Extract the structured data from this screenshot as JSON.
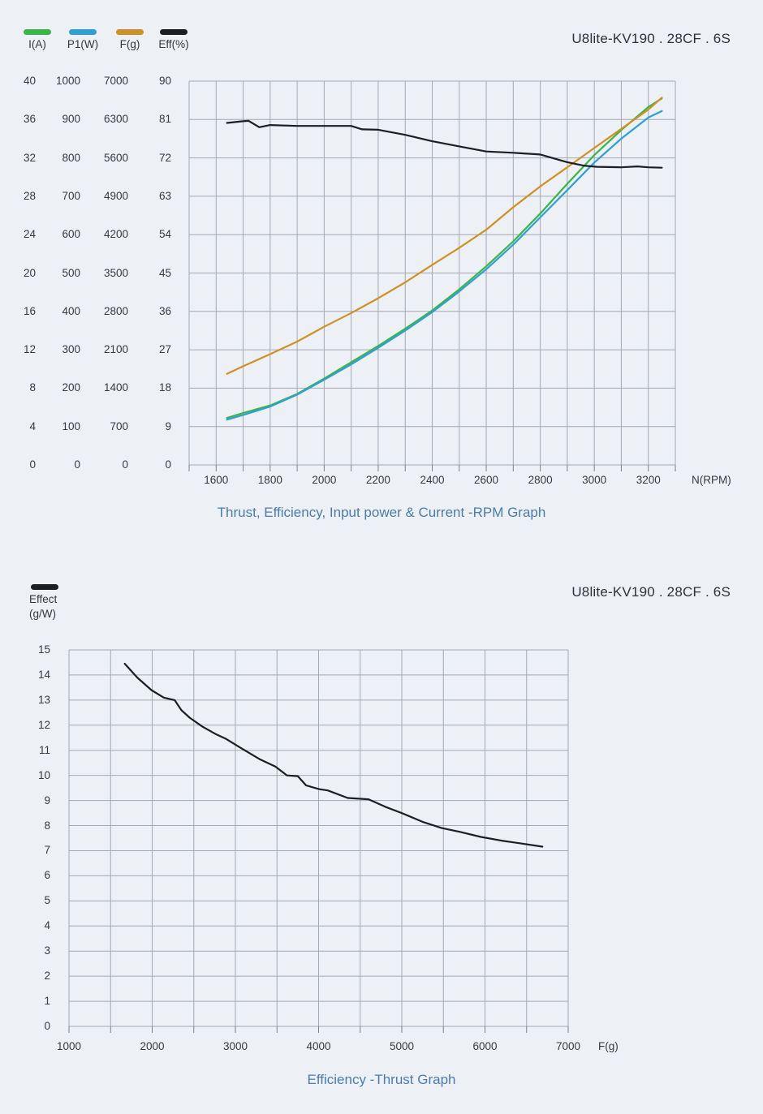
{
  "page_title": "U8lite-KV190 . 28CF . 6S",
  "chart_data": [
    {
      "type": "line",
      "title": "U8lite-KV190 . 28CF . 6S",
      "caption": "Thrust, Efficiency, Input power & Current -RPM Graph",
      "xlabel": "N(RPM)",
      "x_range": [
        1500,
        3300
      ],
      "x_grid_step": 100,
      "x_tick_labels": [
        1600,
        1800,
        2000,
        2200,
        2400,
        2600,
        2800,
        3000,
        3200
      ],
      "grid": true,
      "legend_position": "top-left",
      "y_axes": [
        {
          "label": "I(A)",
          "range": [
            0,
            40
          ],
          "ticks": [
            40,
            36,
            32,
            28,
            24,
            20,
            16,
            12,
            8,
            4,
            0
          ]
        },
        {
          "label": "P1(W)",
          "range": [
            0,
            1000
          ],
          "ticks": [
            1000,
            900,
            800,
            700,
            600,
            500,
            400,
            300,
            200,
            100,
            0
          ]
        },
        {
          "label": "F(g)",
          "range": [
            0,
            7000
          ],
          "ticks": [
            7000,
            6300,
            5600,
            4900,
            4200,
            3500,
            2800,
            2100,
            1400,
            700,
            0
          ]
        },
        {
          "label": "Eff(%)",
          "range": [
            0,
            90
          ],
          "ticks": [
            90,
            81,
            72,
            63,
            54,
            45,
            36,
            27,
            18,
            9,
            0
          ]
        }
      ],
      "x": [
        1640,
        1700,
        1800,
        1900,
        2000,
        2100,
        2200,
        2300,
        2400,
        2500,
        2600,
        2700,
        2800,
        2900,
        3000,
        3100,
        3200,
        3250
      ],
      "series": [
        {
          "name": "I(A)",
          "color": "#3bb44a",
          "axis_max": 40,
          "values": [
            4.9,
            5.4,
            6.2,
            7.4,
            9.0,
            10.7,
            12.4,
            14.2,
            16.1,
            18.3,
            20.7,
            23.3,
            26.2,
            29.3,
            32.3,
            34.9,
            37.3,
            38.2
          ]
        },
        {
          "name": "P1(W)",
          "color": "#2f9fd6",
          "axis_max": 1000,
          "values": [
            118,
            130,
            152,
            183,
            222,
            262,
            305,
            350,
            398,
            452,
            510,
            574,
            645,
            716,
            788,
            850,
            905,
            922
          ]
        },
        {
          "name": "F(g)",
          "color": "#cd9227",
          "axis_max": 7000,
          "values": [
            1660,
            1800,
            2020,
            2250,
            2520,
            2770,
            3040,
            3330,
            3650,
            3960,
            4290,
            4700,
            5080,
            5430,
            5780,
            6130,
            6480,
            6700
          ]
        },
        {
          "name": "Eff(%)",
          "color": "#1b1e22",
          "axis_max": 90,
          "x": [
            1640,
            1700,
            1720,
            1760,
            1800,
            1900,
            2000,
            2100,
            2140,
            2200,
            2300,
            2400,
            2500,
            2600,
            2700,
            2800,
            2900,
            2960,
            3010,
            3100,
            3160,
            3200,
            3250
          ],
          "values": [
            80.2,
            80.6,
            80.7,
            79.2,
            79.7,
            79.5,
            79.5,
            79.5,
            78.7,
            78.6,
            77.4,
            75.9,
            74.7,
            73.5,
            73.2,
            72.8,
            71.0,
            70.2,
            69.9,
            69.8,
            70.0,
            69.8,
            69.7
          ]
        }
      ]
    },
    {
      "type": "line",
      "title": "U8lite-KV190 . 28CF . 6S",
      "caption": "Efficiency -Thrust Graph",
      "xlabel": "F(g)",
      "legend": {
        "name": "Effect",
        "unit": "(g/W)",
        "color": "#1b1e22"
      },
      "x_range": [
        1000,
        7000
      ],
      "x_grid_step": 500,
      "x_tick_labels": [
        1000,
        2000,
        3000,
        4000,
        5000,
        6000,
        7000
      ],
      "y_range": [
        0,
        15
      ],
      "y_ticks": [
        15,
        14,
        13,
        12,
        11,
        10,
        9,
        8,
        7,
        6,
        5,
        4,
        3,
        2,
        1,
        0
      ],
      "grid": true,
      "x": [
        1670,
        1820,
        1990,
        2140,
        2270,
        2350,
        2450,
        2600,
        2760,
        2890,
        3060,
        3290,
        3480,
        3620,
        3750,
        3850,
        4010,
        4110,
        4350,
        4600,
        4800,
        5000,
        5250,
        5480,
        5700,
        5950,
        6200,
        6410,
        6690
      ],
      "values": [
        14.45,
        13.9,
        13.4,
        13.1,
        13.0,
        12.6,
        12.3,
        11.95,
        11.65,
        11.45,
        11.1,
        10.65,
        10.35,
        10.0,
        9.97,
        9.6,
        9.45,
        9.4,
        9.1,
        9.05,
        8.75,
        8.5,
        8.15,
        7.9,
        7.75,
        7.55,
        7.4,
        7.3,
        7.16
      ]
    }
  ],
  "colors": {
    "background": "#edf0f5",
    "gridline": "#a4a9b1",
    "tick_text": "#36393f",
    "caption_blue": "#4b7cab",
    "series_green": "#3bb44a",
    "series_blue": "#2f9fd6",
    "series_orange": "#cd9227",
    "series_black": "#1b1e22"
  }
}
